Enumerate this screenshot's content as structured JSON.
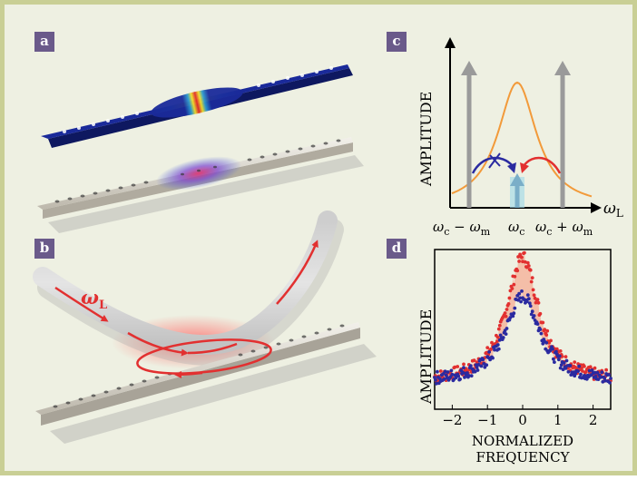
{
  "panels": {
    "a": {
      "label": "a"
    },
    "b": {
      "label": "b",
      "omega_symbol": "ω",
      "omega_sub": "L"
    },
    "c": {
      "label": "c",
      "ylabel": "AMPLITUDE",
      "axis_symbol": "ω",
      "axis_sub": "L",
      "ticks": [
        {
          "main": "ω",
          "sub": "c",
          "tail": " − ω",
          "tail_sub": "m"
        },
        {
          "main": "ω",
          "sub": "c",
          "tail": "",
          "tail_sub": ""
        },
        {
          "main": "ω",
          "sub": "c",
          "tail": " + ω",
          "tail_sub": "m"
        }
      ]
    },
    "d": {
      "label": "d",
      "ylabel": "AMPLITUDE",
      "xlabel_line1": "NORMALIZED",
      "xlabel_line2": "FREQUENCY",
      "x_ticks": [
        "−2",
        "−1",
        "0",
        "1",
        "2"
      ]
    }
  },
  "colors": {
    "border": "#c9cf95",
    "background": "#eef0e2",
    "label_box": "#6a5a8a",
    "lorentzian": "#f29a3a",
    "laser_arrow": "#9a9a9a",
    "red": "#e23030",
    "blue": "#2a2aa0"
  },
  "chart_data": {
    "type": "scatter",
    "xlim": [
      -2.5,
      2.5
    ],
    "x_ticks": [
      -2,
      -1,
      0,
      1,
      2
    ],
    "series": [
      {
        "color": "red",
        "center": 0,
        "peak": 1.0,
        "width": 0.55,
        "baseline": 0.1
      },
      {
        "color": "blue",
        "center": 0,
        "peak": 0.72,
        "width": 0.6,
        "baseline": 0.1
      }
    ]
  }
}
